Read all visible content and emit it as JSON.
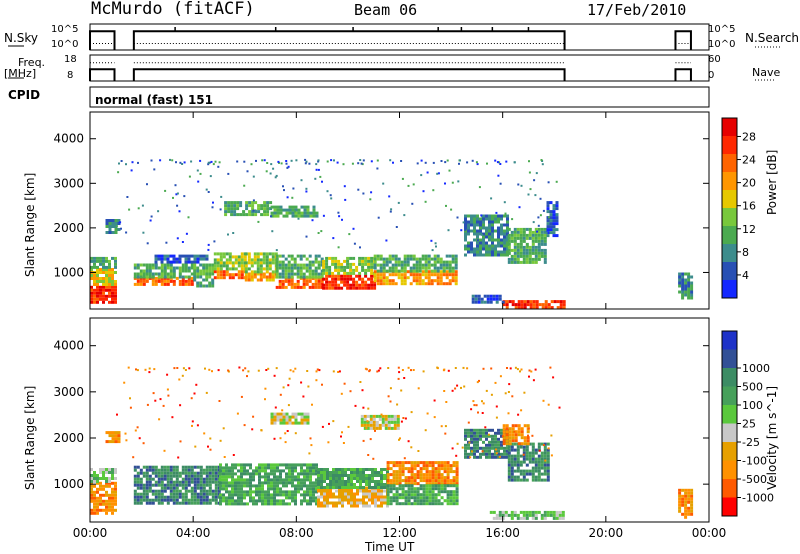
{
  "header": {
    "station": "McMurdo (fitACF)",
    "beam": "Beam 06",
    "date": "17/Feb/2010"
  },
  "labels": {
    "nsky": "N.Sky",
    "nsearch": "N.Search",
    "freq": "Freq.",
    "mhz": "[MHz]",
    "nave": "Nave",
    "cpid": "CPID",
    "cpid_value": "normal (fast) 151"
  },
  "scales": {
    "sky_hi": "10^5",
    "sky_lo": "10^0",
    "search_hi": "10^5",
    "search_lo": "10^0",
    "freq_hi": "18",
    "freq_lo": "8",
    "nave_hi": "60",
    "nave_lo": "0"
  },
  "colors": {
    "power": [
      "#1428ff",
      "#2850b4",
      "#3c8c8c",
      "#4baa50",
      "#78c83c",
      "#e6c800",
      "#ff9600",
      "#ff6400",
      "#ff2800",
      "#e60000"
    ],
    "velocity": [
      "#ff0000",
      "#ff5a00",
      "#ff9100",
      "#e6a000",
      "#c8c8c8",
      "#5ac83c",
      "#46a05a",
      "#3c8c64",
      "#325096",
      "#1e32c8"
    ]
  },
  "chart_data": [
    {
      "type": "heatmap",
      "quantity": "Power",
      "ylabel": "Slant Range [km]",
      "xlabel": "Time UT",
      "x_ticks": [
        "00:00",
        "04:00",
        "08:00",
        "12:00",
        "16:00",
        "20:00",
        "00:00"
      ],
      "x_hours": [
        0,
        4,
        8,
        12,
        16,
        20,
        24
      ],
      "xlim_hours": [
        0,
        24
      ],
      "y_ticks": [
        1000,
        2000,
        3000,
        4000
      ],
      "ylim_km": [
        180,
        4600
      ],
      "colorbar_label": "Power [dB]",
      "colorbar_ticks": [
        "4",
        "8",
        "12",
        "16",
        "20",
        "24",
        "28"
      ],
      "colorbar_range": [
        0,
        30
      ],
      "blocks": [
        {
          "t0": 0.0,
          "t1": 0.95,
          "r0": 350,
          "r1": 700,
          "level": 8
        },
        {
          "t0": 0.0,
          "t1": 0.95,
          "r0": 700,
          "r1": 1100,
          "level": 5
        },
        {
          "t0": 0.0,
          "t1": 0.95,
          "r0": 1100,
          "r1": 1350,
          "level": 3
        },
        {
          "t0": 0.6,
          "t1": 1.1,
          "r0": 1900,
          "r1": 2200,
          "level": 2
        },
        {
          "t0": 1.7,
          "t1": 4.0,
          "r0": 700,
          "r1": 900,
          "level": 7
        },
        {
          "t0": 1.7,
          "t1": 4.0,
          "r0": 900,
          "r1": 1200,
          "level": 3
        },
        {
          "t0": 2.5,
          "t1": 4.5,
          "r0": 1200,
          "r1": 1400,
          "level": 1
        },
        {
          "t0": 4.0,
          "t1": 4.8,
          "r0": 700,
          "r1": 1200,
          "level": 3
        },
        {
          "t0": 4.8,
          "t1": 6.0,
          "r0": 850,
          "r1": 1050,
          "level": 7
        },
        {
          "t0": 4.8,
          "t1": 6.0,
          "r0": 1050,
          "r1": 1450,
          "level": 4
        },
        {
          "t0": 6.0,
          "t1": 7.2,
          "r0": 800,
          "r1": 1000,
          "level": 6
        },
        {
          "t0": 6.0,
          "t1": 7.2,
          "r0": 1000,
          "r1": 1450,
          "level": 4
        },
        {
          "t0": 7.2,
          "t1": 9.0,
          "r0": 650,
          "r1": 900,
          "level": 7
        },
        {
          "t0": 7.2,
          "t1": 9.0,
          "r0": 900,
          "r1": 1400,
          "level": 3
        },
        {
          "t0": 9.0,
          "t1": 11.0,
          "r0": 650,
          "r1": 950,
          "level": 8
        },
        {
          "t0": 9.0,
          "t1": 11.0,
          "r0": 950,
          "r1": 1350,
          "level": 4
        },
        {
          "t0": 11.0,
          "t1": 14.2,
          "r0": 750,
          "r1": 1050,
          "level": 6
        },
        {
          "t0": 11.0,
          "t1": 14.2,
          "r0": 1050,
          "r1": 1400,
          "level": 3
        },
        {
          "t0": 5.2,
          "t1": 7.0,
          "r0": 2300,
          "r1": 2600,
          "level": 3
        },
        {
          "t0": 7.0,
          "t1": 8.8,
          "r0": 2250,
          "r1": 2500,
          "level": 3
        },
        {
          "t0": 14.5,
          "t1": 16.2,
          "r0": 1400,
          "r1": 2300,
          "level": 2
        },
        {
          "t0": 16.2,
          "t1": 17.7,
          "r0": 1200,
          "r1": 2000,
          "level": 3
        },
        {
          "t0": 17.7,
          "t1": 18.1,
          "r0": 1800,
          "r1": 2600,
          "level": 1
        },
        {
          "t0": 16.0,
          "t1": 18.4,
          "r0": 230,
          "r1": 380,
          "level": 8
        },
        {
          "t0": 14.8,
          "t1": 16.0,
          "r0": 300,
          "r1": 500,
          "level": 1
        },
        {
          "t0": 22.8,
          "t1": 23.3,
          "r0": 400,
          "r1": 1000,
          "level": 2
        }
      ]
    },
    {
      "type": "heatmap",
      "quantity": "Velocity",
      "ylabel": "Slant Range [km]",
      "xlabel": "Time UT",
      "x_ticks": [
        "00:00",
        "04:00",
        "08:00",
        "12:00",
        "16:00",
        "20:00",
        "00:00"
      ],
      "x_hours": [
        0,
        4,
        8,
        12,
        16,
        20,
        24
      ],
      "xlim_hours": [
        0,
        24
      ],
      "y_ticks": [
        1000,
        2000,
        3000,
        4000
      ],
      "ylim_km": [
        180,
        4600
      ],
      "colorbar_label": "Velocity [m s^-1]",
      "colorbar_ticks": [
        "-1000",
        "-500",
        "-100",
        "-25",
        "25",
        "100",
        "500",
        "1000"
      ],
      "blocks": [
        {
          "t0": 0.0,
          "t1": 0.95,
          "r0": 350,
          "r1": 1050,
          "level": 2
        },
        {
          "t0": 0.0,
          "t1": 0.95,
          "r0": 1050,
          "r1": 1350,
          "level": 5
        },
        {
          "t0": 0.6,
          "t1": 1.1,
          "r0": 1950,
          "r1": 2150,
          "level": 2
        },
        {
          "t0": 1.7,
          "t1": 5.0,
          "r0": 600,
          "r1": 1400,
          "level": 7
        },
        {
          "t0": 5.0,
          "t1": 8.8,
          "r0": 600,
          "r1": 1450,
          "level": 6
        },
        {
          "t0": 8.8,
          "t1": 11.5,
          "r0": 550,
          "r1": 950,
          "level": 3
        },
        {
          "t0": 8.8,
          "t1": 11.5,
          "r0": 950,
          "r1": 1350,
          "level": 6
        },
        {
          "t0": 11.5,
          "t1": 14.2,
          "r0": 1000,
          "r1": 1500,
          "level": 2
        },
        {
          "t0": 11.5,
          "t1": 14.2,
          "r0": 600,
          "r1": 1000,
          "level": 6
        },
        {
          "t0": 7.0,
          "t1": 8.5,
          "r0": 2300,
          "r1": 2550,
          "level": 4
        },
        {
          "t0": 10.5,
          "t1": 12.0,
          "r0": 2200,
          "r1": 2500,
          "level": 4
        },
        {
          "t0": 14.5,
          "t1": 16.2,
          "r0": 1600,
          "r1": 2200,
          "level": 7
        },
        {
          "t0": 16.2,
          "t1": 17.8,
          "r0": 1100,
          "r1": 1900,
          "level": 7
        },
        {
          "t0": 15.5,
          "t1": 18.4,
          "r0": 230,
          "r1": 420,
          "level": 5
        },
        {
          "t0": 16.0,
          "t1": 17.0,
          "r0": 1900,
          "r1": 2300,
          "level": 2
        },
        {
          "t0": 22.8,
          "t1": 23.3,
          "r0": 300,
          "r1": 900,
          "level": 2
        }
      ]
    },
    {
      "type": "line",
      "quantity": "N.Sky / N.Search",
      "x_hours": [
        0,
        0.95,
        1.7,
        18.4,
        22.7,
        23.3
      ],
      "segments": [
        [
          0,
          0.95
        ],
        [
          1.7,
          18.4
        ],
        [
          22.7,
          23.3
        ]
      ]
    },
    {
      "type": "line",
      "quantity": "Freq / Nave",
      "segments": [
        [
          0,
          0.95
        ],
        [
          1.7,
          18.4
        ],
        [
          22.7,
          23.3
        ]
      ]
    }
  ]
}
